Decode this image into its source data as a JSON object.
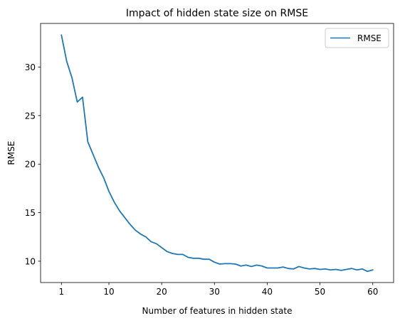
{
  "chart_data": {
    "type": "line",
    "title": "Impact of hidden state size on RMSE",
    "xlabel": "Number of features in hidden state",
    "ylabel": "RMSE",
    "xlim": [
      -2.95,
      63.95
    ],
    "ylim": [
      7.8,
      34.5
    ],
    "xticks": [
      1,
      10,
      20,
      30,
      40,
      50,
      60
    ],
    "yticks": [
      10,
      15,
      20,
      25,
      30
    ],
    "grid": false,
    "legend_position": "top-right",
    "series": [
      {
        "name": "RMSE",
        "color": "#1f77b4",
        "x": [
          1,
          2,
          3,
          4,
          5,
          6,
          7,
          8,
          9,
          10,
          11,
          12,
          13,
          14,
          15,
          16,
          17,
          18,
          19,
          20,
          21,
          22,
          23,
          24,
          25,
          26,
          27,
          28,
          29,
          30,
          31,
          32,
          33,
          34,
          35,
          36,
          37,
          38,
          39,
          40,
          41,
          42,
          43,
          44,
          45,
          46,
          47,
          48,
          49,
          50,
          51,
          52,
          53,
          54,
          55,
          56,
          57,
          58,
          59,
          60
        ],
        "y": [
          33.3,
          30.6,
          28.9,
          26.4,
          26.9,
          22.3,
          21.0,
          19.7,
          18.6,
          17.2,
          16.1,
          15.2,
          14.5,
          13.8,
          13.2,
          12.8,
          12.5,
          12.0,
          11.8,
          11.4,
          11.0,
          10.8,
          10.7,
          10.7,
          10.4,
          10.3,
          10.3,
          10.2,
          10.2,
          9.9,
          9.7,
          9.75,
          9.75,
          9.7,
          9.5,
          9.6,
          9.45,
          9.6,
          9.5,
          9.3,
          9.3,
          9.3,
          9.4,
          9.25,
          9.2,
          9.45,
          9.3,
          9.2,
          9.25,
          9.15,
          9.2,
          9.1,
          9.15,
          9.05,
          9.15,
          9.25,
          9.1,
          9.2,
          8.95,
          9.1
        ]
      }
    ]
  }
}
